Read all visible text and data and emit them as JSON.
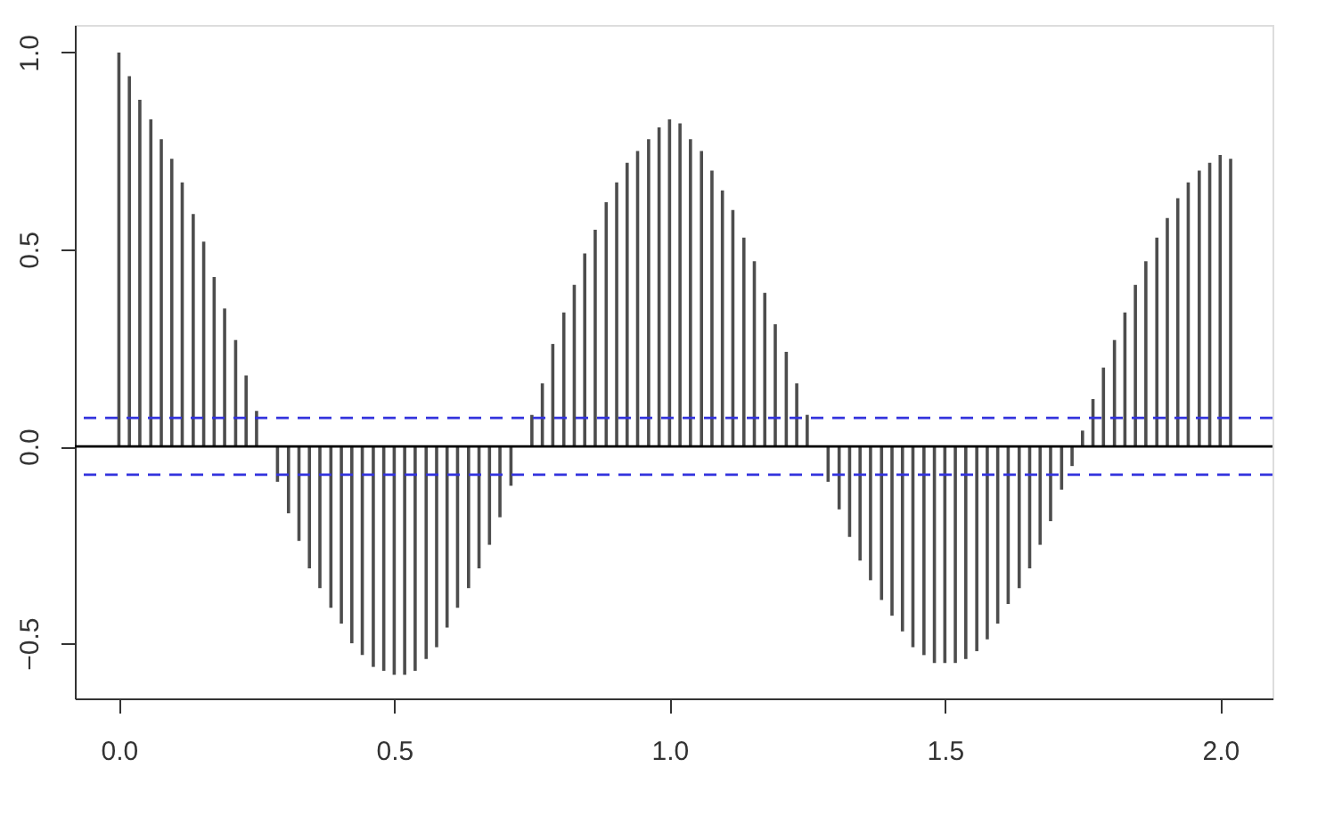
{
  "chart_data": {
    "type": "bar",
    "x": [
      0,
      0.019,
      0.038,
      0.058,
      0.077,
      0.096,
      0.115,
      0.135,
      0.154,
      0.173,
      0.192,
      0.212,
      0.231,
      0.25,
      0.269,
      0.288,
      0.308,
      0.327,
      0.346,
      0.365,
      0.385,
      0.404,
      0.423,
      0.442,
      0.462,
      0.481,
      0.5,
      0.519,
      0.538,
      0.558,
      0.577,
      0.596,
      0.615,
      0.635,
      0.654,
      0.673,
      0.692,
      0.712,
      0.731,
      0.75,
      0.769,
      0.788,
      0.808,
      0.827,
      0.846,
      0.865,
      0.885,
      0.904,
      0.923,
      0.942,
      0.962,
      0.981,
      1.0,
      1.019,
      1.038,
      1.058,
      1.077,
      1.096,
      1.115,
      1.135,
      1.154,
      1.173,
      1.192,
      1.212,
      1.231,
      1.25,
      1.269,
      1.288,
      1.308,
      1.327,
      1.346,
      1.365,
      1.385,
      1.404,
      1.423,
      1.442,
      1.462,
      1.481,
      1.5,
      1.519,
      1.538,
      1.558,
      1.577,
      1.596,
      1.615,
      1.635,
      1.654,
      1.673,
      1.692,
      1.712,
      1.731,
      1.75,
      1.769,
      1.788,
      1.808,
      1.827,
      1.846,
      1.865,
      1.885,
      1.904,
      1.923,
      1.942,
      1.962,
      1.981,
      2.0,
      2.019
    ],
    "series": [
      {
        "color": "#4d4d4d",
        "values": [
          1.0,
          0.94,
          0.88,
          0.83,
          0.78,
          0.73,
          0.67,
          0.59,
          0.52,
          0.43,
          0.35,
          0.27,
          0.18,
          0.09,
          0.0,
          -0.09,
          -0.17,
          -0.24,
          -0.31,
          -0.36,
          -0.41,
          -0.45,
          -0.5,
          -0.53,
          -0.56,
          -0.57,
          -0.58,
          -0.58,
          -0.57,
          -0.54,
          -0.51,
          -0.46,
          -0.41,
          -0.36,
          -0.31,
          -0.25,
          -0.18,
          -0.1,
          0.0,
          0.08,
          0.16,
          0.26,
          0.34,
          0.41,
          0.49,
          0.55,
          0.62,
          0.67,
          0.72,
          0.75,
          0.78,
          0.81,
          0.83,
          0.82,
          0.78,
          0.75,
          0.7,
          0.65,
          0.6,
          0.53,
          0.47,
          0.39,
          0.31,
          0.24,
          0.16,
          0.08,
          0.0,
          -0.09,
          -0.16,
          -0.23,
          -0.29,
          -0.34,
          -0.39,
          -0.43,
          -0.47,
          -0.51,
          -0.53,
          -0.55,
          -0.55,
          -0.55,
          -0.54,
          -0.52,
          -0.49,
          -0.45,
          -0.4,
          -0.36,
          -0.31,
          -0.25,
          -0.19,
          -0.11,
          -0.05,
          0.04,
          0.12,
          0.2,
          0.27,
          0.34,
          0.41,
          0.47,
          0.53,
          0.58,
          0.63,
          0.67,
          0.7,
          0.72,
          0.74,
          0.73
        ]
      }
    ],
    "xlim": [
      -0.08,
      2.095
    ],
    "ylim": [
      -0.64,
      1.07
    ],
    "xticks": [
      {
        "value": 0,
        "label": "0.0"
      },
      0.5,
      {
        "value": 1,
        "label": "1.0"
      },
      1.5,
      {
        "value": 2,
        "label": "2.0"
      }
    ],
    "yticks": [
      -0.5,
      {
        "value": 0,
        "label": "0.0"
      },
      0.5,
      {
        "value": 1,
        "label": "1.0"
      }
    ],
    "ref_lines": [
      {
        "axis": "y",
        "value": 0,
        "color": "#000000",
        "line_style": "solid"
      },
      {
        "axis": "y",
        "value": 0.072,
        "color": "#3333dd",
        "line_style": "dashed"
      },
      {
        "axis": "y",
        "value": -0.072,
        "color": "#3333dd",
        "line_style": "dashed"
      }
    ],
    "grid": false
  }
}
